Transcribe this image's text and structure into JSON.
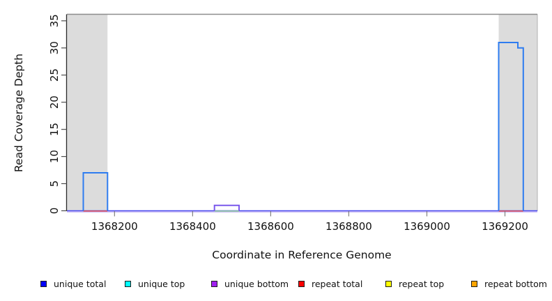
{
  "figure": {
    "y_axis_title": "Read Coverage Depth",
    "x_axis_title": "Coordinate in Reference Genome"
  },
  "chart_data": {
    "type": "line",
    "subtype": "step-coverage",
    "title": "",
    "xlabel": "Coordinate in Reference Genome",
    "ylabel": "Read Coverage Depth",
    "xlim": [
      1368078,
      1369283
    ],
    "ylim": [
      0,
      36.2
    ],
    "grid": false,
    "x_ticks": {
      "values": [
        1368200,
        1368400,
        1368600,
        1368800,
        1369000,
        1369200
      ],
      "labels": [
        "1368200",
        "1368400",
        "1368600",
        "1368800",
        "1369000",
        "1369200"
      ]
    },
    "y_ticks": {
      "values": [
        0,
        5,
        10,
        15,
        20,
        25,
        30,
        35
      ],
      "labels": [
        "0",
        "5",
        "10",
        "15",
        "20",
        "25",
        "30",
        "35"
      ]
    },
    "shaded_regions": [
      {
        "name": "left-gray-band",
        "x1": 1368078,
        "x2": 1368182,
        "color": "#DCDCDC"
      },
      {
        "name": "right-gray-band",
        "x1": 1369184,
        "x2": 1369283,
        "color": "#DCDCDC"
      }
    ],
    "top_boundary_line": {
      "color": "#8C8C8C"
    },
    "series": [
      {
        "name": "unique total",
        "line_color": "#2E7CF0",
        "segments": [
          {
            "start": 1368120,
            "end": 1368182,
            "depth": 7
          },
          {
            "start": 1369184,
            "end": 1369233,
            "depth": 31
          },
          {
            "start": 1369233,
            "end": 1369247,
            "depth": 30
          }
        ]
      },
      {
        "name": "unique top",
        "line_color": "#00FFFF",
        "segments": []
      },
      {
        "name": "unique bottom",
        "line_color": "#7A58EC",
        "segments": [
          {
            "start": 1368456,
            "end": 1368519,
            "depth": 1
          }
        ]
      },
      {
        "name": "repeat total",
        "line_color": "#E84B45",
        "segments": []
      },
      {
        "name": "repeat top",
        "line_color": "#FFFF00",
        "segments": []
      },
      {
        "name": "repeat bottom",
        "line_color": "#FFA500",
        "segments": []
      }
    ],
    "baseline_layers": [
      {
        "name": "zero-line-lavender",
        "color": "#BCAAF2",
        "x1": 1368078,
        "x2": 1369283,
        "dy": 1.6,
        "w": 1.3
      },
      {
        "name": "zero-line-blue",
        "color": "#4A4AF0",
        "x1": 1368078,
        "x2": 1369283,
        "dy": 0,
        "w": 1.5
      },
      {
        "name": "zero-green-segment",
        "color": "#8FD88F",
        "x1": 1368456,
        "x2": 1368519,
        "dy": 0.4,
        "w": 1.4
      },
      {
        "name": "zero-red-left",
        "color": "#E84B45",
        "x1": 1368120,
        "x2": 1368182,
        "dy": 0.4,
        "w": 1.4
      },
      {
        "name": "zero-red-right",
        "color": "#E84B45",
        "x1": 1369184,
        "x2": 1369247,
        "dy": 0.4,
        "w": 1.4
      }
    ],
    "axis_colors": {
      "y_axis": "#2b2b2b",
      "y_tick": "#4d4d4d",
      "x_tick": "#808080",
      "label": "#111111"
    },
    "legend_position": "bottom"
  },
  "legend": {
    "items": [
      {
        "label": "unique total",
        "fill": "#0000FF"
      },
      {
        "label": "unique top",
        "fill": "#00FFFF"
      },
      {
        "label": "unique bottom",
        "fill": "#A020F0"
      },
      {
        "label": "repeat total",
        "fill": "#FF0000"
      },
      {
        "label": "repeat top",
        "fill": "#FFFF00"
      },
      {
        "label": "repeat bottom",
        "fill": "#FFA500"
      }
    ]
  }
}
